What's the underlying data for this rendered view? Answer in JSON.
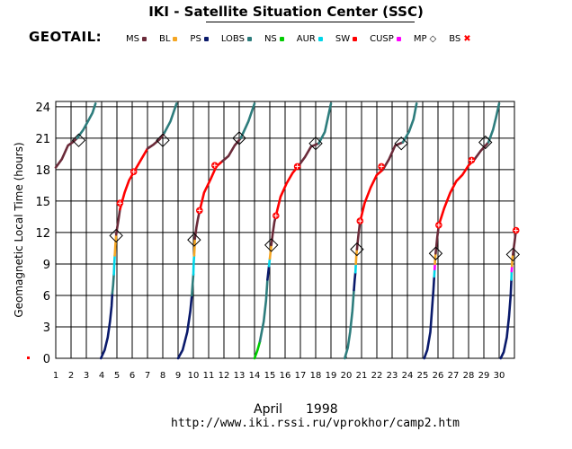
{
  "header": {
    "title": "IKI - Satellite Situation Center (SSC)",
    "spacecraft": "GEOTAIL:"
  },
  "legend": [
    {
      "label": "MS",
      "color": "#6b2b3a",
      "marker": "dot"
    },
    {
      "label": "BL",
      "color": "#f5a623",
      "marker": "dot"
    },
    {
      "label": "PS",
      "color": "#0a1a6b",
      "marker": "dot"
    },
    {
      "label": "LOBS",
      "color": "#2e7d7d",
      "marker": "dot"
    },
    {
      "label": "NS",
      "color": "#00cc00",
      "marker": "dot"
    },
    {
      "label": "AUR",
      "color": "#00d5e8",
      "marker": "dot"
    },
    {
      "label": "SW",
      "color": "#ff0000",
      "marker": "dot"
    },
    {
      "label": "CUSP",
      "color": "#ff00ff",
      "marker": "dot"
    },
    {
      "label": "MP",
      "color": "#000000",
      "marker": "diamond"
    },
    {
      "label": "BS",
      "color": "#ff0000",
      "marker": "cross"
    }
  ],
  "footer": {
    "month": "April",
    "year": "1998",
    "url": "http://www.iki.rssi.ru/vprokhor/camp2.htm"
  },
  "chart_data": {
    "type": "line",
    "title": "IKI - Satellite Situation Center (SSC)",
    "xlabel": "April    1998",
    "ylabel": "Geomagnetic  Local  Time  (hours)",
    "xlim": [
      1,
      31
    ],
    "ylim": [
      0,
      24.5
    ],
    "x_ticks": [
      1,
      2,
      3,
      4,
      5,
      6,
      7,
      8,
      9,
      10,
      11,
      12,
      13,
      14,
      15,
      16,
      17,
      18,
      19,
      20,
      21,
      22,
      23,
      24,
      25,
      26,
      27,
      28,
      29,
      30
    ],
    "y_ticks": [
      0,
      3,
      6,
      9,
      12,
      15,
      18,
      21,
      24
    ],
    "y_tick_labels": [
      "0",
      "3",
      "6",
      "9",
      "12",
      "15",
      "18",
      "21",
      "24"
    ],
    "grid": true,
    "colors": {
      "MS": "#6b2b3a",
      "BL": "#f5a623",
      "PS": "#0a1a6b",
      "LOBS": "#2e7d7d",
      "NS": "#00cc00",
      "AUR": "#00d5e8",
      "SW": "#ff0000",
      "CUSP": "#ff00ff",
      "MP": "#000000",
      "BS": "#ff0000"
    },
    "segments": [
      {
        "region": "MS",
        "points": [
          [
            1.0,
            18.2
          ],
          [
            1.4,
            19.0
          ],
          [
            1.8,
            20.3
          ],
          [
            2.1,
            20.6
          ],
          [
            2.4,
            21.0
          ]
        ]
      },
      {
        "region": "LOBS",
        "points": [
          [
            2.4,
            21.0
          ],
          [
            2.8,
            21.8
          ],
          [
            3.1,
            22.6
          ],
          [
            3.4,
            23.4
          ],
          [
            3.6,
            24.3
          ]
        ]
      },
      {
        "region": "PS",
        "points": [
          [
            3.95,
            0
          ],
          [
            4.2,
            0.8
          ],
          [
            4.4,
            2.0
          ],
          [
            4.55,
            3.5
          ],
          [
            4.65,
            5.0
          ],
          [
            4.7,
            6.2
          ]
        ]
      },
      {
        "region": "LOBS",
        "points": [
          [
            4.7,
            6.2
          ],
          [
            4.75,
            7.0
          ],
          [
            4.8,
            8.0
          ]
        ]
      },
      {
        "region": "AUR",
        "points": [
          [
            4.8,
            8.0
          ],
          [
            4.83,
            9.0
          ],
          [
            4.86,
            9.8
          ]
        ]
      },
      {
        "region": "BL",
        "points": [
          [
            4.86,
            9.8
          ],
          [
            4.9,
            10.8
          ],
          [
            4.95,
            11.8
          ]
        ]
      },
      {
        "region": "MS",
        "points": [
          [
            4.95,
            11.8
          ],
          [
            5.0,
            12.3
          ],
          [
            5.1,
            13.2
          ],
          [
            5.2,
            14.2
          ]
        ]
      },
      {
        "region": "SW",
        "points": [
          [
            5.2,
            14.2
          ],
          [
            5.5,
            15.8
          ],
          [
            5.8,
            17.0
          ],
          [
            6.2,
            18.0
          ],
          [
            6.6,
            19.0
          ],
          [
            7.0,
            20.0
          ]
        ]
      },
      {
        "region": "MS",
        "points": [
          [
            7.0,
            20.0
          ],
          [
            7.4,
            20.4
          ],
          [
            7.8,
            20.9
          ],
          [
            8.1,
            21.5
          ]
        ]
      },
      {
        "region": "LOBS",
        "points": [
          [
            8.1,
            21.5
          ],
          [
            8.5,
            22.6
          ],
          [
            8.9,
            24.3
          ]
        ]
      },
      {
        "region": "PS",
        "points": [
          [
            9.0,
            0
          ],
          [
            9.3,
            0.8
          ],
          [
            9.6,
            2.5
          ],
          [
            9.8,
            4.5
          ],
          [
            9.9,
            6.0
          ]
        ]
      },
      {
        "region": "LOBS",
        "points": [
          [
            9.9,
            6.0
          ],
          [
            9.95,
            7.0
          ],
          [
            10.0,
            8.0
          ]
        ]
      },
      {
        "region": "AUR",
        "points": [
          [
            10.0,
            8.0
          ],
          [
            10.02,
            9.0
          ],
          [
            10.05,
            9.8
          ]
        ]
      },
      {
        "region": "BL",
        "points": [
          [
            10.05,
            9.8
          ],
          [
            10.08,
            10.6
          ],
          [
            10.1,
            11.4
          ]
        ]
      },
      {
        "region": "MS",
        "points": [
          [
            10.1,
            11.4
          ],
          [
            10.2,
            12.5
          ],
          [
            10.3,
            13.3
          ],
          [
            10.4,
            14.0
          ]
        ]
      },
      {
        "region": "SW",
        "points": [
          [
            10.4,
            14.0
          ],
          [
            10.7,
            15.8
          ],
          [
            11.1,
            17.0
          ],
          [
            11.5,
            18.3
          ],
          [
            11.9,
            18.8
          ]
        ]
      },
      {
        "region": "MS",
        "points": [
          [
            11.9,
            18.8
          ],
          [
            12.3,
            19.3
          ],
          [
            12.7,
            20.3
          ],
          [
            13.1,
            21.0
          ]
        ]
      },
      {
        "region": "LOBS",
        "points": [
          [
            13.1,
            21.0
          ],
          [
            13.6,
            22.6
          ],
          [
            14.0,
            24.3
          ]
        ]
      },
      {
        "region": "NS",
        "points": [
          [
            14.0,
            0
          ],
          [
            14.2,
            0.8
          ],
          [
            14.35,
            1.6
          ]
        ]
      },
      {
        "region": "LOBS",
        "points": [
          [
            14.35,
            1.6
          ],
          [
            14.6,
            3.5
          ],
          [
            14.75,
            5.5
          ],
          [
            14.85,
            7.5
          ]
        ]
      },
      {
        "region": "PS",
        "points": [
          [
            14.85,
            7.5
          ],
          [
            14.9,
            8.2
          ],
          [
            14.95,
            8.8
          ]
        ]
      },
      {
        "region": "AUR",
        "points": [
          [
            14.95,
            8.8
          ],
          [
            15.0,
            9.5
          ]
        ]
      },
      {
        "region": "BL",
        "points": [
          [
            15.0,
            9.5
          ],
          [
            15.05,
            10.2
          ],
          [
            15.1,
            10.8
          ]
        ]
      },
      {
        "region": "MS",
        "points": [
          [
            15.1,
            10.8
          ],
          [
            15.2,
            12.0
          ],
          [
            15.3,
            13.0
          ],
          [
            15.4,
            13.6
          ]
        ]
      },
      {
        "region": "SW",
        "points": [
          [
            15.4,
            13.6
          ],
          [
            15.7,
            15.4
          ],
          [
            16.1,
            16.7
          ],
          [
            16.5,
            17.7
          ],
          [
            16.9,
            18.4
          ]
        ]
      },
      {
        "region": "MS",
        "points": [
          [
            16.9,
            18.4
          ],
          [
            17.3,
            19.2
          ],
          [
            17.7,
            20.2
          ],
          [
            18.2,
            20.5
          ]
        ]
      },
      {
        "region": "LOBS",
        "points": [
          [
            18.2,
            20.5
          ],
          [
            18.6,
            21.6
          ],
          [
            19.0,
            24.3
          ]
        ]
      },
      {
        "region": "LOBS",
        "points": [
          [
            19.9,
            0
          ],
          [
            20.1,
            1.0
          ],
          [
            20.25,
            2.5
          ],
          [
            20.4,
            4.5
          ],
          [
            20.5,
            6.5
          ]
        ]
      },
      {
        "region": "PS",
        "points": [
          [
            20.5,
            6.5
          ],
          [
            20.55,
            7.5
          ],
          [
            20.6,
            8.2
          ]
        ]
      },
      {
        "region": "AUR",
        "points": [
          [
            20.6,
            8.2
          ],
          [
            20.63,
            9.0
          ]
        ]
      },
      {
        "region": "BL",
        "points": [
          [
            20.63,
            9.0
          ],
          [
            20.66,
            9.8
          ],
          [
            20.7,
            10.4
          ]
        ]
      },
      {
        "region": "MS",
        "points": [
          [
            20.7,
            10.4
          ],
          [
            20.8,
            11.8
          ],
          [
            20.9,
            13.0
          ]
        ]
      },
      {
        "region": "SW",
        "points": [
          [
            20.9,
            13.0
          ],
          [
            21.2,
            14.8
          ],
          [
            21.6,
            16.3
          ],
          [
            22.0,
            17.5
          ],
          [
            22.4,
            18.0
          ]
        ]
      },
      {
        "region": "MS",
        "points": [
          [
            22.4,
            18.0
          ],
          [
            22.8,
            19.0
          ],
          [
            23.2,
            20.3
          ],
          [
            23.7,
            20.6
          ]
        ]
      },
      {
        "region": "LOBS",
        "points": [
          [
            23.7,
            20.6
          ],
          [
            24.1,
            21.6
          ],
          [
            24.4,
            22.8
          ],
          [
            24.6,
            24.3
          ]
        ]
      },
      {
        "region": "PS",
        "points": [
          [
            25.1,
            0
          ],
          [
            25.3,
            0.8
          ],
          [
            25.5,
            2.5
          ],
          [
            25.6,
            4.5
          ],
          [
            25.7,
            6.5
          ],
          [
            25.75,
            7.8
          ]
        ]
      },
      {
        "region": "AUR",
        "points": [
          [
            25.75,
            7.8
          ],
          [
            25.78,
            8.5
          ]
        ]
      },
      {
        "region": "CUSP",
        "points": [
          [
            25.78,
            8.5
          ],
          [
            25.8,
            9.0
          ]
        ]
      },
      {
        "region": "BL",
        "points": [
          [
            25.8,
            9.0
          ],
          [
            25.82,
            9.6
          ],
          [
            25.85,
            10.0
          ]
        ]
      },
      {
        "region": "MS",
        "points": [
          [
            25.85,
            10.0
          ],
          [
            25.95,
            11.5
          ],
          [
            26.05,
            12.7
          ]
        ]
      },
      {
        "region": "SW",
        "points": [
          [
            26.05,
            12.7
          ],
          [
            26.4,
            14.3
          ],
          [
            26.8,
            15.8
          ],
          [
            27.2,
            16.9
          ],
          [
            27.6,
            17.5
          ],
          [
            28.0,
            18.4
          ],
          [
            28.4,
            19.0
          ]
        ]
      },
      {
        "region": "MS",
        "points": [
          [
            28.4,
            19.0
          ],
          [
            28.8,
            19.8
          ],
          [
            29.3,
            20.6
          ]
        ]
      },
      {
        "region": "LOBS",
        "points": [
          [
            29.3,
            20.6
          ],
          [
            29.6,
            21.8
          ],
          [
            29.8,
            23.0
          ],
          [
            30.0,
            24.3
          ]
        ]
      },
      {
        "region": "PS",
        "points": [
          [
            30.1,
            0
          ],
          [
            30.3,
            0.6
          ],
          [
            30.5,
            2.0
          ],
          [
            30.65,
            4.0
          ],
          [
            30.75,
            6.0
          ],
          [
            30.8,
            7.5
          ]
        ]
      },
      {
        "region": "AUR",
        "points": [
          [
            30.8,
            7.5
          ],
          [
            30.82,
            8.3
          ]
        ]
      },
      {
        "region": "CUSP",
        "points": [
          [
            30.82,
            8.3
          ],
          [
            30.84,
            8.8
          ]
        ]
      },
      {
        "region": "BL",
        "points": [
          [
            30.84,
            8.8
          ],
          [
            30.86,
            9.4
          ],
          [
            30.9,
            9.9
          ]
        ]
      },
      {
        "region": "MS",
        "points": [
          [
            30.9,
            9.9
          ],
          [
            31.0,
            11.0
          ],
          [
            31.1,
            12.2
          ]
        ]
      }
    ],
    "magnetopause_crossings": [
      [
        2.5,
        20.8
      ],
      [
        4.95,
        11.7
      ],
      [
        8.0,
        20.8
      ],
      [
        10.05,
        11.3
      ],
      [
        13.0,
        21.0
      ],
      [
        15.1,
        10.8
      ],
      [
        18.0,
        20.5
      ],
      [
        20.7,
        10.4
      ],
      [
        23.6,
        20.5
      ],
      [
        25.85,
        10.0
      ],
      [
        29.1,
        20.6
      ],
      [
        30.9,
        9.9
      ]
    ],
    "bow_shock_crossings": [
      [
        5.2,
        14.8
      ],
      [
        6.1,
        17.8
      ],
      [
        10.4,
        14.1
      ],
      [
        11.4,
        18.4
      ],
      [
        15.4,
        13.6
      ],
      [
        16.8,
        18.3
      ],
      [
        20.9,
        13.1
      ],
      [
        22.3,
        18.3
      ],
      [
        26.05,
        12.7
      ],
      [
        28.2,
        18.9
      ],
      [
        31.1,
        12.2
      ]
    ]
  }
}
